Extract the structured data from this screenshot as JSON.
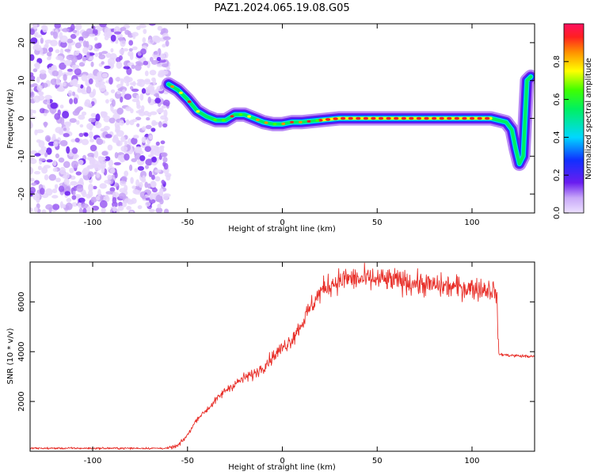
{
  "figure": {
    "title": "PAZ1.2024.065.19.08.G05"
  },
  "chart_data": [
    {
      "type": "heatmap",
      "xlabel": "Height of straight line (km)",
      "ylabel": "Frequency (Hz)",
      "xlim": [
        -133,
        133
      ],
      "ylim": [
        -25,
        25
      ],
      "xticks": [
        -100,
        -50,
        0,
        50,
        100
      ],
      "yticks": [
        -20,
        -10,
        0,
        10,
        20
      ],
      "colorbar": {
        "label": "Normalized spectral amplitude",
        "range": [
          0,
          1
        ],
        "ticks": [
          0.0,
          0.2,
          0.4,
          0.6,
          0.8
        ],
        "colormap": "gist_rainbow_r"
      },
      "ridge": {
        "x": [
          -60,
          -55,
          -50,
          -45,
          -40,
          -35,
          -30,
          -25,
          -20,
          -15,
          -10,
          -5,
          0,
          5,
          10,
          20,
          30,
          50,
          70,
          90,
          110,
          118,
          121,
          123,
          125,
          127,
          129,
          131
        ],
        "y": [
          9,
          7.5,
          5,
          2,
          0.5,
          -0.5,
          -0.5,
          1,
          1,
          0,
          -1,
          -1.5,
          -1.5,
          -1,
          -1,
          -0.5,
          0,
          0,
          0,
          0,
          0,
          -1,
          -3,
          -8,
          -12,
          -10,
          10,
          11
        ],
        "peak_segment_x": [
          20,
          110
        ]
      },
      "noise_region": {
        "x": [
          -133,
          -60
        ],
        "y": [
          -25,
          25
        ]
      },
      "grid": false
    },
    {
      "type": "line",
      "xlabel": "Height of straight line (km)",
      "ylabel": "SNR (10 * v/v)",
      "xlim": [
        -133,
        133
      ],
      "ylim": [
        0,
        7600
      ],
      "xticks": [
        -100,
        -50,
        0,
        50,
        100
      ],
      "yticks": [
        2000,
        4000,
        6000
      ],
      "color": "#e8302a",
      "trend": {
        "x": [
          -133,
          -60,
          -55,
          -50,
          -45,
          -40,
          -35,
          -30,
          -25,
          -20,
          -15,
          -10,
          -5,
          0,
          5,
          10,
          15,
          20,
          25,
          30,
          35,
          40,
          50,
          60,
          70,
          80,
          90,
          100,
          110,
          113,
          114,
          120,
          133
        ],
        "y": [
          120,
          120,
          220,
          650,
          1300,
          1650,
          2050,
          2450,
          2700,
          2950,
          3100,
          3400,
          3800,
          4150,
          4500,
          5100,
          5800,
          6400,
          6700,
          6850,
          6950,
          6900,
          6900,
          6850,
          6750,
          6650,
          6600,
          6550,
          6500,
          6400,
          3900,
          3850,
          3800
        ]
      },
      "grid": false
    }
  ]
}
